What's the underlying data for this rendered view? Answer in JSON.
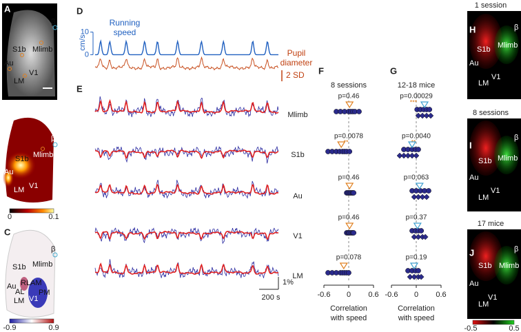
{
  "panel_a": {
    "letter": "A",
    "labels": [
      "β",
      "Mlimb",
      "S1b",
      "Au",
      "LM",
      "V1"
    ]
  },
  "panel_b": {
    "letter": "B",
    "labels": [
      "β",
      "Mlimb",
      "S1b",
      "Au",
      "LM",
      "V1"
    ],
    "colorbar": [
      "0",
      "0.1"
    ]
  },
  "panel_c": {
    "letter": "C",
    "labels": [
      "β",
      "Mlimb",
      "S1b",
      "Au",
      "AL",
      "RL",
      "AM",
      "PM",
      "LM",
      "V1"
    ],
    "colorbar": [
      "-0.9",
      "0.9"
    ]
  },
  "panel_d": {
    "letter": "D",
    "y_label": "cm/s",
    "yticks": [
      10,
      0
    ],
    "ylim": [
      -2,
      12
    ],
    "speed_label": [
      "Running",
      "speed"
    ],
    "pupil_label": [
      "Pupil",
      "diameter"
    ],
    "scale_label": "2 SD"
  },
  "panel_e": {
    "letter": "E",
    "rows": [
      "Mlimb",
      "S1b",
      "Au",
      "V1",
      "LM"
    ],
    "scale_y": "1%",
    "scale_x": "200 s"
  },
  "panel_f": {
    "letter": "F",
    "title": "8 sessions",
    "xlim": [
      -0.75,
      0.75
    ],
    "xticks": [
      -0.6,
      0,
      0.6
    ],
    "xlabel": [
      "Correlation",
      "with speed"
    ],
    "rows": [
      {
        "p": "p=0.46",
        "values": [
          -0.3,
          -0.2,
          -0.1,
          0,
          0.05,
          0.1,
          0.15,
          0.25
        ],
        "mean": 0.02
      },
      {
        "p": "p=0.0078",
        "stars": "**",
        "values": [
          -0.5,
          -0.4,
          -0.3,
          -0.22,
          -0.15,
          -0.1,
          -0.05,
          0.02
        ],
        "mean": -0.18
      },
      {
        "p": "p=0.46",
        "values": [
          -0.05,
          -0.02,
          0,
          0.03,
          0.05,
          0.08,
          0.1,
          0.12
        ],
        "mean": 0.02
      },
      {
        "p": "p=0.46",
        "values": [
          -0.05,
          -0.02,
          0,
          0.02,
          0.05,
          0.08,
          0.1,
          0.12
        ],
        "mean": 0.02
      },
      {
        "p": "p=0.078",
        "values": [
          -0.5,
          -0.4,
          -0.3,
          -0.2,
          -0.15,
          -0.1,
          -0.05,
          0
        ],
        "mean": -0.12
      }
    ]
  },
  "panel_g": {
    "letter": "G",
    "title": "12-18 mice",
    "xlim": [
      -0.75,
      0.75
    ],
    "xticks": [
      -0.6,
      0,
      0.6
    ],
    "xlabel": [
      "Correlation",
      "with speed"
    ],
    "rows": [
      {
        "p": "p=0.00029",
        "stars": "***",
        "circles": [
          0.02,
          0.1,
          0.18,
          0.25,
          0.32
        ],
        "diamonds": [
          0.05,
          0.15,
          0.25,
          0.35
        ],
        "mean": 0.2
      },
      {
        "p": "p=0.0040",
        "stars": "**",
        "circles": [
          -0.3,
          -0.2,
          -0.1,
          -0.02,
          0.05
        ],
        "diamonds": [
          -0.4,
          -0.3,
          -0.2,
          -0.1,
          0
        ],
        "mean": -0.1
      },
      {
        "p": "p=0.063",
        "circles": [
          -0.1,
          0,
          0.1,
          0.2,
          0.3
        ],
        "diamonds": [
          -0.05,
          0.05,
          0.15,
          0.25
        ],
        "mean": 0.08
      },
      {
        "p": "p=0.37",
        "circles": [
          -0.1,
          -0.02,
          0.05,
          0.12
        ],
        "diamonds": [
          -0.05,
          0.05,
          0.15,
          0.22
        ],
        "mean": 0.03
      },
      {
        "p": "p=0.19",
        "circles": [
          -0.2,
          -0.1,
          -0.02,
          0.05
        ],
        "diamonds": [
          -0.15,
          -0.05,
          0.05,
          0.12
        ],
        "mean": -0.05
      }
    ]
  },
  "panel_h": {
    "letter": "H",
    "title": "1 session",
    "labels": [
      "β",
      "Mlimb",
      "S1b",
      "Au",
      "LM",
      "V1"
    ]
  },
  "panel_i": {
    "letter": "I",
    "title": "8 sessions",
    "labels": [
      "β",
      "Mlimb",
      "S1b",
      "Au",
      "LM",
      "V1"
    ]
  },
  "panel_j": {
    "letter": "J",
    "title": "17 mice",
    "labels": [
      "β",
      "Mlimb",
      "S1b",
      "Au",
      "LM",
      "V1"
    ],
    "colorbar": [
      "-0.5",
      "0.5"
    ]
  }
}
